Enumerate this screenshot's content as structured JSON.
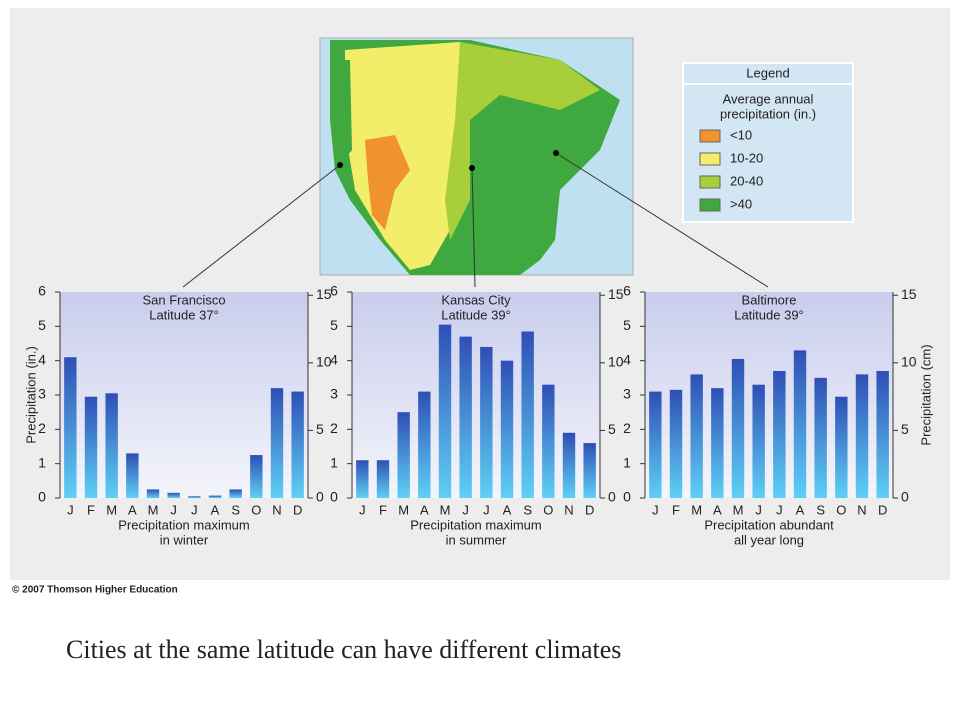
{
  "chart_data": [
    {
      "type": "bar",
      "title": "San Francisco",
      "subtitle": "Latitude 37°",
      "note": [
        "Precipitation maximum",
        "in winter"
      ],
      "ylabel": "Precipitation (in.)",
      "categories": [
        "J",
        "F",
        "M",
        "A",
        "M",
        "J",
        "J",
        "A",
        "S",
        "O",
        "N",
        "D"
      ],
      "values": [
        4.1,
        2.95,
        3.05,
        1.3,
        0.25,
        0.15,
        0.05,
        0.07,
        0.25,
        1.25,
        3.2,
        3.1
      ],
      "color": "#2f4fb5",
      "ylim": [
        0,
        6
      ],
      "yticks": [
        0,
        1,
        2,
        3,
        4,
        5,
        6
      ],
      "y2lim": [
        0,
        15.24
      ],
      "y2ticks": [
        0,
        5,
        10,
        15
      ]
    },
    {
      "type": "bar",
      "title": "Kansas City",
      "subtitle": "Latitude 39°",
      "note": [
        "Precipitation maximum",
        "in summer"
      ],
      "categories": [
        "J",
        "F",
        "M",
        "A",
        "M",
        "J",
        "J",
        "A",
        "S",
        "O",
        "N",
        "D"
      ],
      "values": [
        1.1,
        1.1,
        2.5,
        3.1,
        5.05,
        4.7,
        4.4,
        4.0,
        4.85,
        3.3,
        1.9,
        1.6
      ],
      "color": "#2f4fb5",
      "ylim": [
        0,
        6
      ],
      "yticks": [
        0,
        1,
        2,
        3,
        4,
        5,
        6
      ],
      "y2lim": [
        0,
        15.24
      ],
      "y2ticks": [
        0,
        5,
        10,
        15
      ]
    },
    {
      "type": "bar",
      "title": "Baltimore",
      "subtitle": "Latitude 39°",
      "note": [
        "Precipitation abundant",
        "all year long"
      ],
      "y2label": "Precipitation (cm)",
      "categories": [
        "J",
        "F",
        "M",
        "A",
        "M",
        "J",
        "J",
        "A",
        "S",
        "O",
        "N",
        "D"
      ],
      "values": [
        3.1,
        3.15,
        3.6,
        3.2,
        4.05,
        3.3,
        3.7,
        4.3,
        3.5,
        2.95,
        3.6,
        3.7
      ],
      "color": "#2f4fb5",
      "ylim": [
        0,
        6
      ],
      "yticks": [
        0,
        1,
        2,
        3,
        4,
        5,
        6
      ],
      "y2lim": [
        0,
        15.24
      ],
      "y2ticks": [
        0,
        5,
        10,
        15
      ]
    }
  ],
  "legend": {
    "title": "Legend",
    "subtitle": [
      "Average annual",
      "precipitation (in.)"
    ],
    "items": [
      {
        "label": "<10",
        "color": "#f0922e"
      },
      {
        "label": "10-20",
        "color": "#f3ee6a"
      },
      {
        "label": "20-40",
        "color": "#a8cf3a"
      },
      {
        "label": ">40",
        "color": "#3fa83f"
      }
    ]
  },
  "copyright": "© 2007 Thomson Higher Education",
  "caption": "Cities at the same latitude can have different climates"
}
